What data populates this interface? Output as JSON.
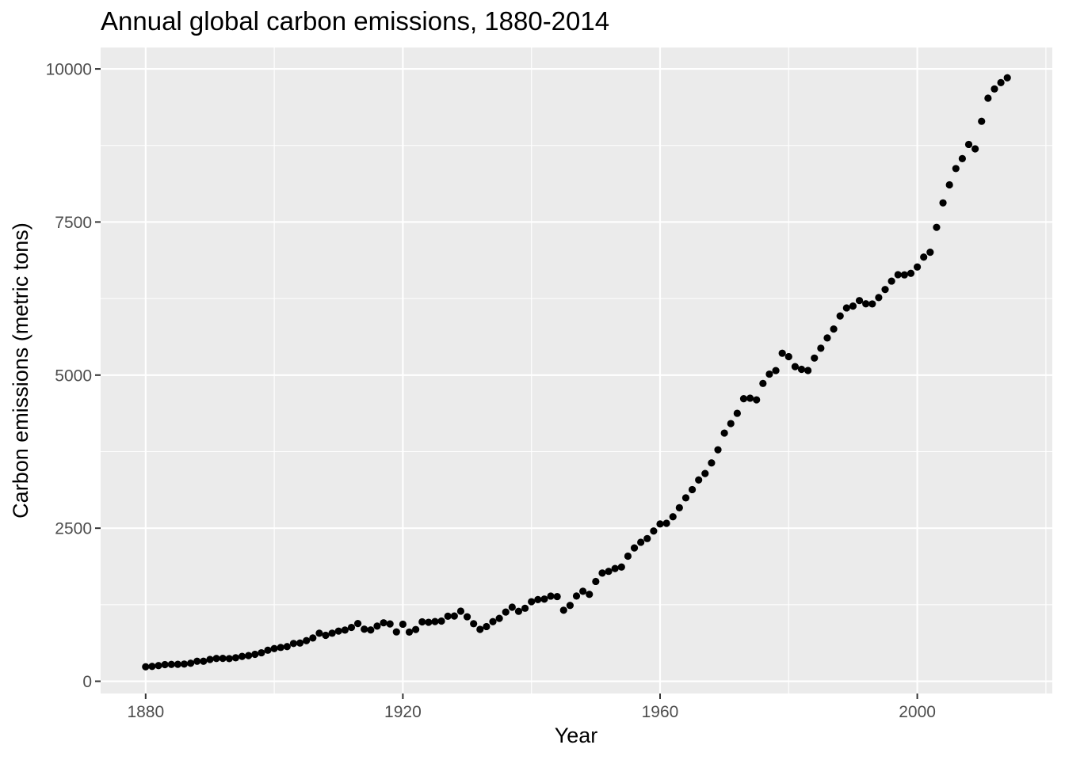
{
  "chart_data": {
    "type": "scatter",
    "title": "Annual global carbon emissions, 1880-2014",
    "xlabel": "Year",
    "ylabel": "Carbon emissions (metric tons)",
    "xlim": [
      1873,
      2021
    ],
    "ylim": [
      -200,
      10350
    ],
    "xticks": [
      1880,
      1920,
      1960,
      2000
    ],
    "xtick_labels": [
      "1880",
      "1920",
      "1960",
      "2000"
    ],
    "yticks": [
      0,
      2500,
      5000,
      7500,
      10000
    ],
    "ytick_labels": [
      "0",
      "2500",
      "5000",
      "7500",
      "10000"
    ],
    "grid": true,
    "x": [
      1880,
      1881,
      1882,
      1883,
      1884,
      1885,
      1886,
      1887,
      1888,
      1889,
      1890,
      1891,
      1892,
      1893,
      1894,
      1895,
      1896,
      1897,
      1898,
      1899,
      1900,
      1901,
      1902,
      1903,
      1904,
      1905,
      1906,
      1907,
      1908,
      1909,
      1910,
      1911,
      1912,
      1913,
      1914,
      1915,
      1916,
      1917,
      1918,
      1919,
      1920,
      1921,
      1922,
      1923,
      1924,
      1925,
      1926,
      1927,
      1928,
      1929,
      1930,
      1931,
      1932,
      1933,
      1934,
      1935,
      1936,
      1937,
      1938,
      1939,
      1940,
      1941,
      1942,
      1943,
      1944,
      1945,
      1946,
      1947,
      1948,
      1949,
      1950,
      1951,
      1952,
      1953,
      1954,
      1955,
      1956,
      1957,
      1958,
      1959,
      1960,
      1961,
      1962,
      1963,
      1964,
      1965,
      1966,
      1967,
      1968,
      1969,
      1970,
      1971,
      1972,
      1973,
      1974,
      1975,
      1976,
      1977,
      1978,
      1979,
      1980,
      1981,
      1982,
      1983,
      1984,
      1985,
      1986,
      1987,
      1988,
      1989,
      1990,
      1991,
      1992,
      1993,
      1994,
      1995,
      1996,
      1997,
      1998,
      1999,
      2000,
      2001,
      2002,
      2003,
      2004,
      2005,
      2006,
      2007,
      2008,
      2009,
      2010,
      2011,
      2012,
      2013,
      2014
    ],
    "y": [
      236,
      243,
      256,
      272,
      275,
      277,
      281,
      295,
      327,
      327,
      356,
      372,
      374,
      370,
      383,
      406,
      419,
      440,
      465,
      507,
      534,
      552,
      566,
      617,
      624,
      663,
      707,
      784,
      750,
      785,
      819,
      836,
      879,
      943,
      850,
      838,
      901,
      955,
      936,
      806,
      932,
      803,
      845,
      970,
      963,
      975,
      983,
      1062,
      1065,
      1145,
      1053,
      940,
      847,
      893,
      973,
      1027,
      1130,
      1209,
      1142,
      1192,
      1299,
      1334,
      1342,
      1391,
      1383,
      1160,
      1238,
      1392,
      1469,
      1419,
      1630,
      1767,
      1795,
      1841,
      1865,
      2043,
      2177,
      2270,
      2330,
      2454,
      2569,
      2580,
      2686,
      2833,
      2995,
      3130,
      3288,
      3393,
      3566,
      3780,
      4053,
      4208,
      4376,
      4614,
      4623,
      4596,
      4864,
      5016,
      5074,
      5357,
      5301,
      5138,
      5094,
      5075,
      5278,
      5439,
      5607,
      5752,
      5965,
      6097,
      6127,
      6217,
      6164,
      6162,
      6266,
      6398,
      6535,
      6640,
      6637,
      6662,
      6765,
      6927,
      7006,
      7413,
      7812,
      8107,
      8373,
      8535,
      8767,
      8695,
      9145,
      9523,
      9673,
      9776,
      9855
    ]
  }
}
